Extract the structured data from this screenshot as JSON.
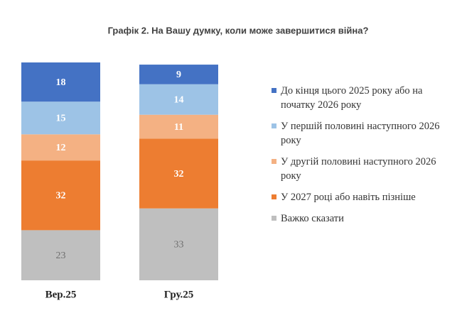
{
  "chart_data": {
    "type": "stacked-bar",
    "title": "Графік 2. На Вашу думку, коли може завершитися війна?",
    "categories": [
      "Вер.25",
      "Гру.25"
    ],
    "series": [
      {
        "name": "До кінця цього 2025 року або на початку 2026 року",
        "color": "#4472c4",
        "values": [
          18,
          9
        ]
      },
      {
        "name": "У першій половині наступного 2026 року",
        "color": "#9dc3e6",
        "values": [
          15,
          14
        ]
      },
      {
        "name": "У другій половині наступного 2026 року",
        "color": "#f4b183",
        "values": [
          12,
          11
        ]
      },
      {
        "name": "У 2027 році або навіть пізніше",
        "color": "#ed7d31",
        "values": [
          32,
          32
        ]
      },
      {
        "name": "Важко сказати",
        "color": "#bfbfbf",
        "values": [
          23,
          33
        ]
      }
    ]
  }
}
